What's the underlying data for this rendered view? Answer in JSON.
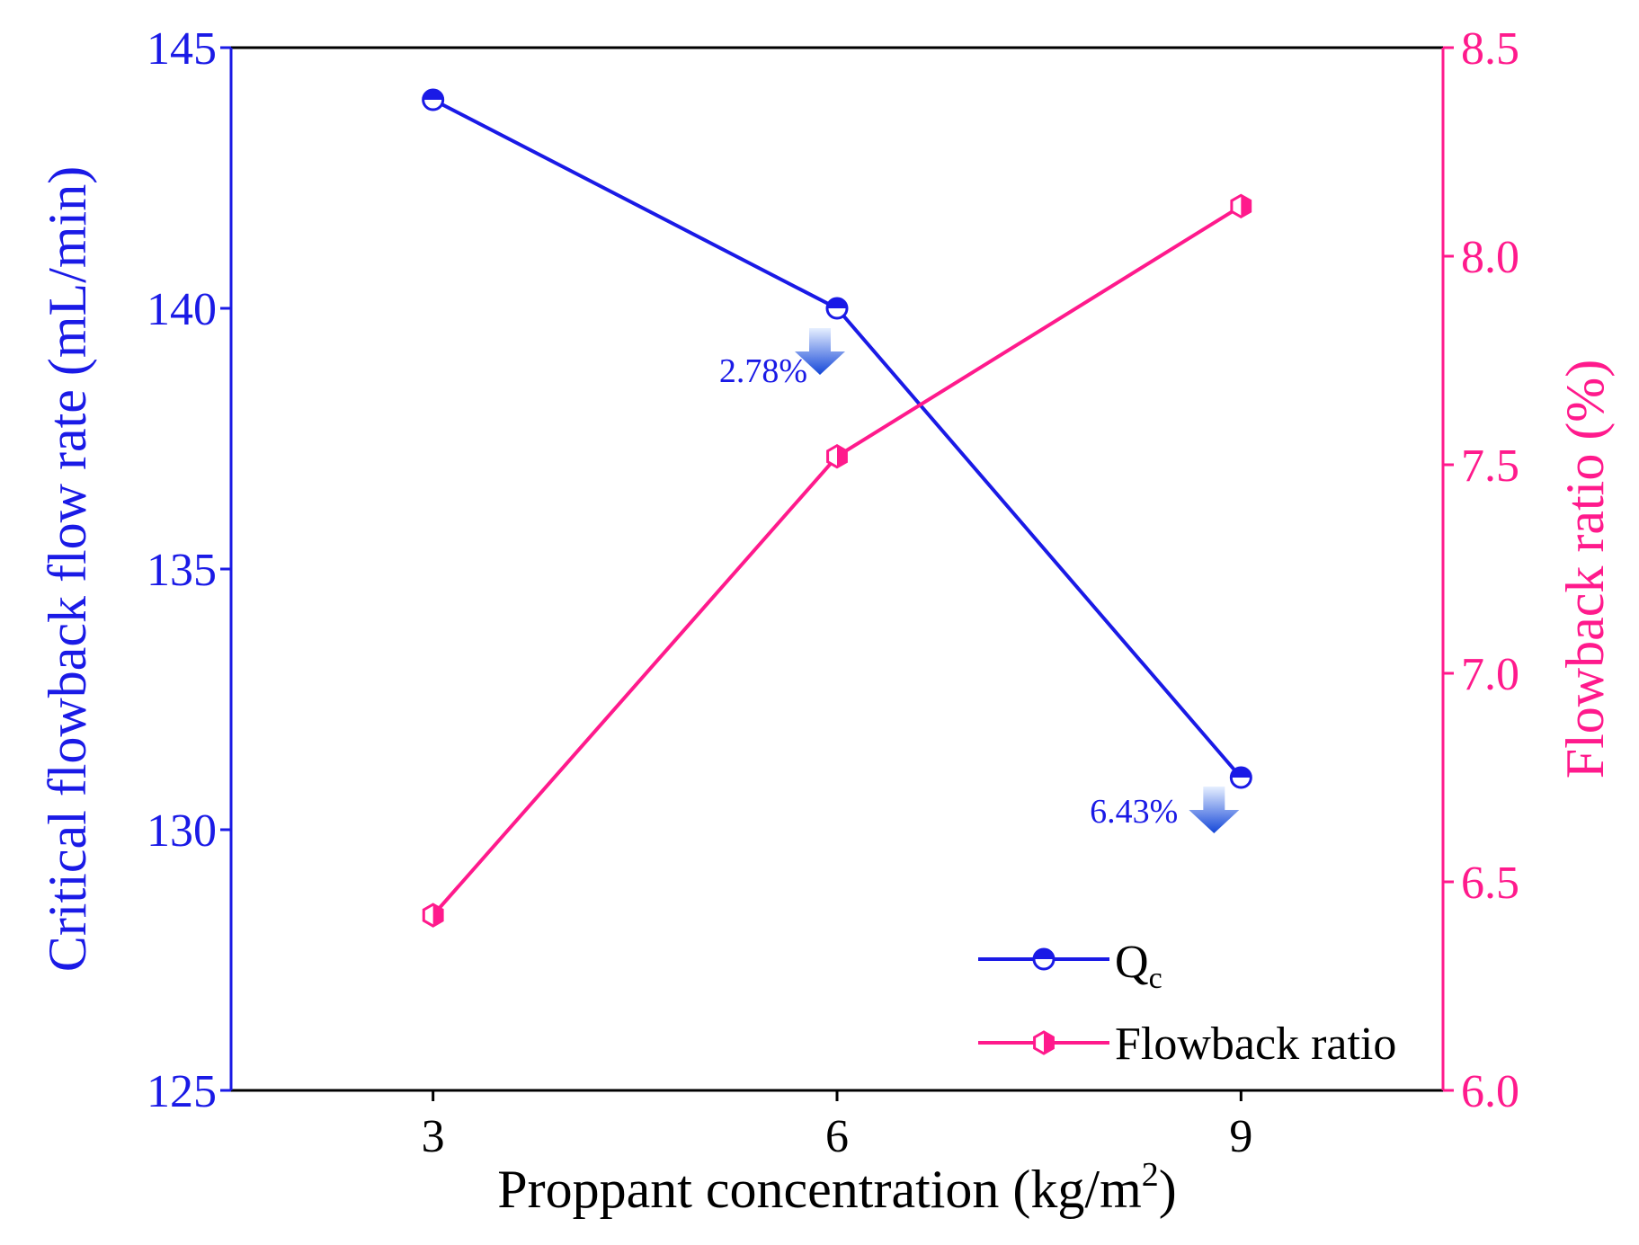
{
  "chart_data": {
    "type": "line",
    "x": [
      3,
      6,
      9
    ],
    "xticks": [
      "3",
      "6",
      "9"
    ],
    "xlim": [
      1.5,
      10.5
    ],
    "xlabel_main": "Proppant concentration (kg/m",
    "xlabel_sup": "2",
    "xlabel_end": ")",
    "y_left": {
      "label": "Critical flowback flow rate (mL/min)",
      "lim": [
        125,
        145
      ],
      "ticks": [
        "125",
        "130",
        "135",
        "140",
        "145"
      ],
      "tick_values": [
        125,
        130,
        135,
        140,
        145
      ],
      "color": "#1a1ae6"
    },
    "y_right": {
      "label": "Flowback ratio (%)",
      "lim": [
        6.0,
        8.5
      ],
      "ticks": [
        "6.0",
        "6.5",
        "7.0",
        "7.5",
        "8.0",
        "8.5"
      ],
      "tick_values": [
        6.0,
        6.5,
        7.0,
        7.5,
        8.0,
        8.5
      ],
      "color": "#ff1a8c"
    },
    "series": [
      {
        "name_main": "Q",
        "name_sub": "c",
        "axis": "left",
        "color": "#1a1ae6",
        "values": [
          144,
          140,
          131
        ]
      },
      {
        "name": "Flowback ratio",
        "axis": "right",
        "color": "#ff1a8c",
        "values": [
          6.42,
          7.52,
          8.12
        ]
      }
    ],
    "annotations": [
      {
        "text": "2.78%",
        "x": 6,
        "y": 140
      },
      {
        "text": "6.43%",
        "x": 9,
        "y": 131
      }
    ],
    "legend": "bottom-right",
    "grid": false
  }
}
